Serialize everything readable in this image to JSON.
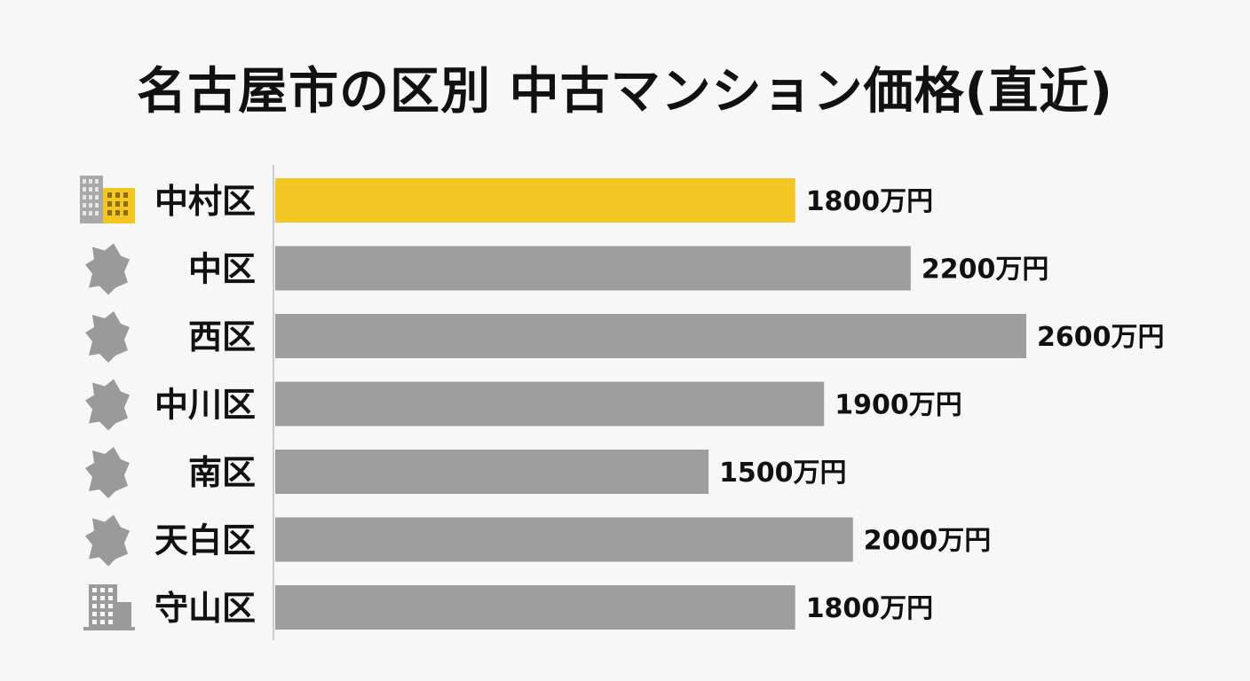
{
  "title": "名古屋市の区別 中古マンション価格(直近)",
  "chart_data": {
    "type": "bar",
    "orientation": "horizontal",
    "title": "名古屋市の区別 中古マンション価格(直近)",
    "xlabel": "",
    "ylabel": "",
    "xlim": [
      0,
      2600
    ],
    "grid": false,
    "legend": "none",
    "unit": "万円",
    "categories": [
      "中村区",
      "中区",
      "西区",
      "中川区",
      "南区",
      "天白区",
      "守山区"
    ],
    "values": [
      1800,
      2200,
      2600,
      1900,
      1500,
      2000,
      1800
    ],
    "value_labels": [
      "1800万円",
      "2200万円",
      "2600万円",
      "1900万円",
      "1500万円",
      "2000万円",
      "1800万円"
    ],
    "icons": [
      "buildings-icon",
      "district-map-icon",
      "district-map-icon",
      "district-map-icon",
      "district-map-icon",
      "district-map-icon",
      "building-icon"
    ],
    "highlight_index": 0,
    "colors": {
      "highlight": "#f3c623",
      "default": "#9e9e9e",
      "axis": "#cccccc",
      "icon": "#9a9a9a"
    }
  }
}
